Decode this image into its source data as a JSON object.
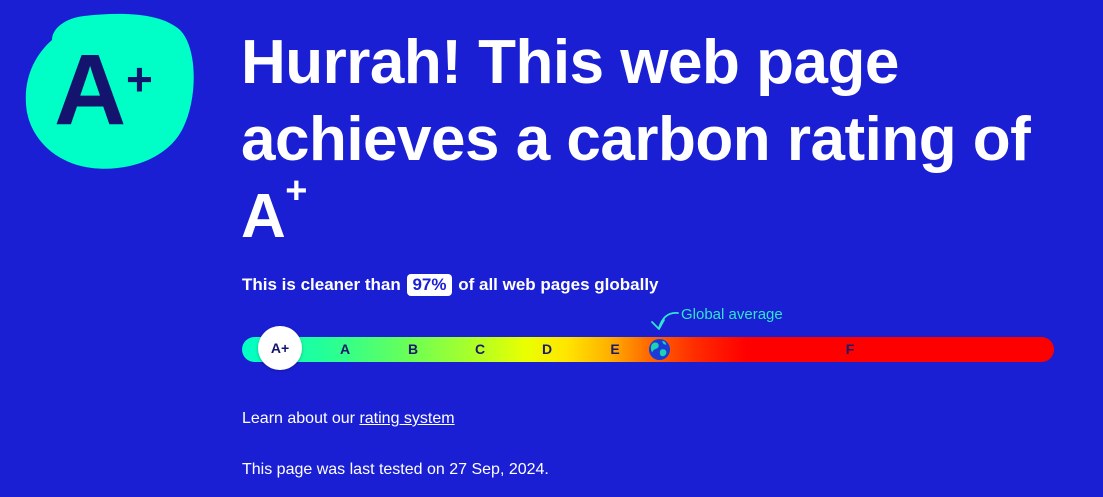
{
  "badge": {
    "grade": "A",
    "modifier": "+"
  },
  "headline": {
    "text": "Hurrah! This web page achieves a carbon rating of",
    "grade": "A",
    "modifier": "+"
  },
  "cleaner": {
    "prefix": "This is cleaner than",
    "percent": "97%",
    "suffix": "of all web pages globally"
  },
  "scale": {
    "active_grade": "A+",
    "grades": [
      "A",
      "B",
      "C",
      "D",
      "E",
      "F"
    ],
    "global_average_label": "Global average",
    "globe_icon": "globe-icon",
    "arrow_icon": "curved-arrow-icon"
  },
  "learn": {
    "prefix": "Learn about our",
    "link_text": "rating system"
  },
  "tested": {
    "text": "This page was last tested on 27 Sep, 2024."
  },
  "colors": {
    "background": "#1a1fd4",
    "badge_fill": "#00ffc6",
    "badge_text": "#14146e",
    "accent_text": "#2fe6cd"
  }
}
